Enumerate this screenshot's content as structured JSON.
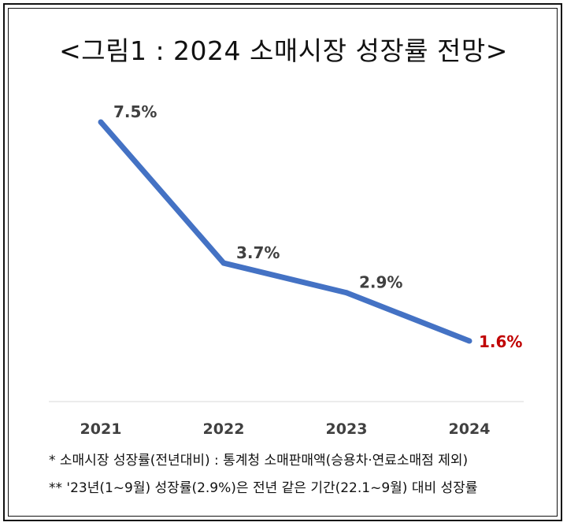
{
  "title": "<그림1 : 2024 소매시장 성장률 전망>",
  "chart_data": {
    "type": "line",
    "title": "<그림1 : 2024 소매시장 성장률 전망>",
    "categories": [
      "2021",
      "2022",
      "2023",
      "2024"
    ],
    "series": [
      {
        "values": [
          7.5,
          3.7,
          2.9,
          1.6
        ],
        "data_labels": [
          "7.5%",
          "3.7%",
          "2.9%",
          "1.6%"
        ],
        "color": "#4472C4"
      }
    ],
    "highlight_color": "#C00000",
    "label_color": "#404040",
    "grid": false,
    "legend": "none",
    "xlabel": "",
    "ylabel": ""
  },
  "notes": [
    "* 소매시장 성장률(전년대비) : 통계청 소매판매액(승용차·연료소매점 제외)",
    "** '23년(1~9월) 성장률(2.9%)은 전년 같은 기간(22.1~9월) 대비 성장률"
  ]
}
